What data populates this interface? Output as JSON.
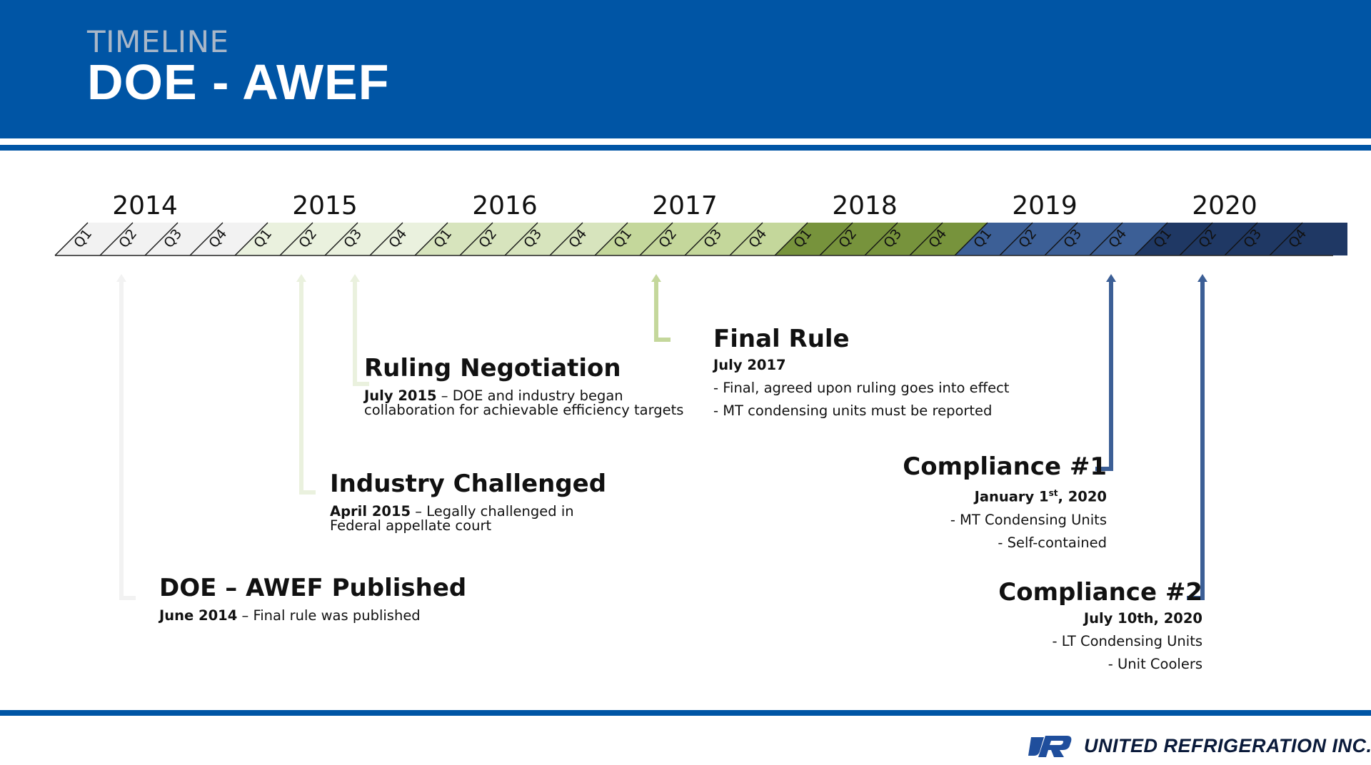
{
  "header": {
    "subtitle": "TIMELINE",
    "title": "DOE - AWEF"
  },
  "colors": {
    "brand_blue": "#0055a5",
    "segments": [
      {
        "year": "2014",
        "fill": "#f2f2f2"
      },
      {
        "year": "2015",
        "fill": "#eaf1de"
      },
      {
        "year": "2016",
        "fill": "#d7e4bd"
      },
      {
        "year": "2017",
        "fill": "#c4d79b"
      },
      {
        "year": "2018",
        "fill": "#77933c"
      },
      {
        "year": "2019",
        "fill": "#3c5f96"
      },
      {
        "year": "2020",
        "fill": "#1f3864"
      }
    ]
  },
  "timeline": {
    "years": [
      "2014",
      "2015",
      "2016",
      "2017",
      "2018",
      "2019",
      "2020"
    ],
    "quarters": [
      "Q1",
      "Q2",
      "Q3",
      "Q4"
    ]
  },
  "events": {
    "published": {
      "title": "DOE – AWEF Published",
      "date": "June 2014",
      "desc": " – Final rule was published",
      "marker": {
        "year": "2014",
        "quarter": "Q2"
      },
      "color": "#f2f2f2"
    },
    "challenged": {
      "title": "Industry Challenged",
      "date": "April 2015",
      "desc": " – Legally challenged in",
      "desc2": "Federal appellate court",
      "marker": {
        "year": "2015",
        "quarter": "Q2"
      },
      "color": "#eaf1de"
    },
    "negotiation": {
      "title": "Ruling Negotiation",
      "date": "July 2015",
      "desc": " – DOE and industry began",
      "desc2": "collaboration for achievable efficiency targets",
      "marker": {
        "year": "2015",
        "quarter": "Q3"
      },
      "color": "#eaf1de"
    },
    "final_rule": {
      "title": "Final Rule",
      "date": "July 2017",
      "lines": [
        "- Final, agreed upon ruling goes into effect",
        "- MT condensing units must be reported"
      ],
      "marker": {
        "year": "2017",
        "quarter": "Q2"
      },
      "color": "#c4d79b"
    },
    "compliance1": {
      "title": "Compliance #1",
      "date": "January 1",
      "date_sup": "st",
      "date_end": ", 2020",
      "lines": [
        "- MT Condensing Units",
        "- Self-contained"
      ],
      "marker": {
        "year": "2019",
        "quarter": "Q4"
      },
      "color": "#3c5f96"
    },
    "compliance2": {
      "title": "Compliance #2",
      "date": "July 10th, 2020",
      "lines": [
        "- LT Condensing Units",
        "- Unit Coolers"
      ],
      "marker": {
        "year": "2020",
        "quarter": "Q2"
      },
      "color": "#3c5f96"
    }
  },
  "logo": {
    "mark": "UR",
    "company": "UNITED REFRIGERATION INC."
  }
}
